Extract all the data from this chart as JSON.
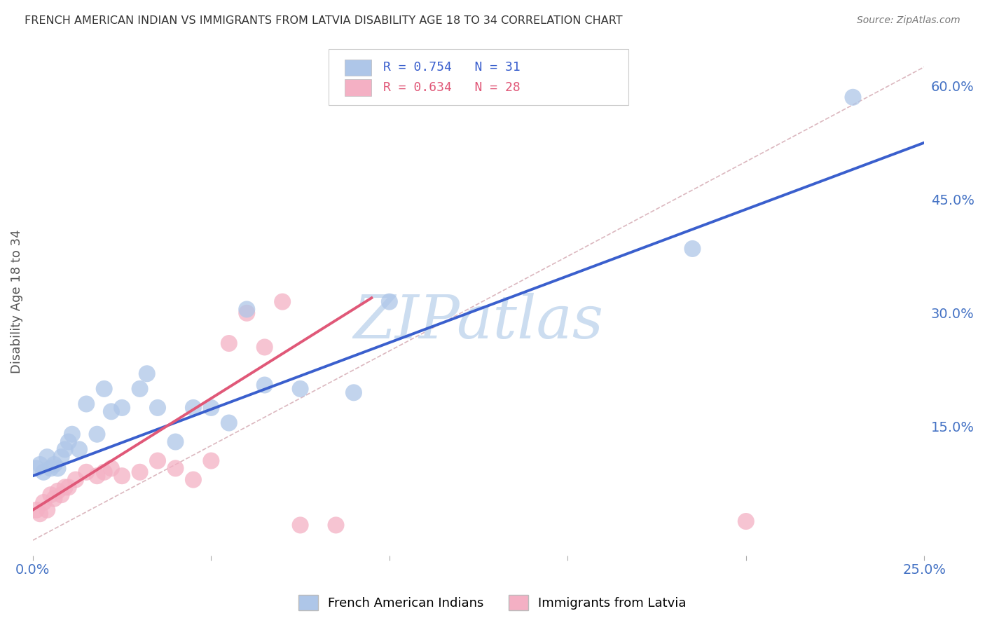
{
  "title": "FRENCH AMERICAN INDIAN VS IMMIGRANTS FROM LATVIA DISABILITY AGE 18 TO 34 CORRELATION CHART",
  "source": "Source: ZipAtlas.com",
  "ylabel": "Disability Age 18 to 34",
  "legend_blue_r": "R = 0.754",
  "legend_blue_n": "N = 31",
  "legend_pink_r": "R = 0.634",
  "legend_pink_n": "N = 28",
  "legend_label_blue": "French American Indians",
  "legend_label_pink": "Immigrants from Latvia",
  "watermark": "ZIPatlas",
  "blue_scatter_x": [
    0.001,
    0.002,
    0.003,
    0.004,
    0.005,
    0.006,
    0.007,
    0.008,
    0.009,
    0.01,
    0.011,
    0.013,
    0.015,
    0.018,
    0.02,
    0.022,
    0.025,
    0.03,
    0.032,
    0.035,
    0.04,
    0.045,
    0.05,
    0.055,
    0.06,
    0.065,
    0.075,
    0.09,
    0.1,
    0.185,
    0.23
  ],
  "blue_scatter_y": [
    0.095,
    0.1,
    0.09,
    0.11,
    0.095,
    0.1,
    0.095,
    0.11,
    0.12,
    0.13,
    0.14,
    0.12,
    0.18,
    0.14,
    0.2,
    0.17,
    0.175,
    0.2,
    0.22,
    0.175,
    0.13,
    0.175,
    0.175,
    0.155,
    0.305,
    0.205,
    0.2,
    0.195,
    0.315,
    0.385,
    0.585
  ],
  "pink_scatter_x": [
    0.001,
    0.002,
    0.003,
    0.004,
    0.005,
    0.006,
    0.007,
    0.008,
    0.009,
    0.01,
    0.012,
    0.015,
    0.018,
    0.02,
    0.022,
    0.025,
    0.03,
    0.035,
    0.04,
    0.045,
    0.05,
    0.055,
    0.06,
    0.065,
    0.07,
    0.075,
    0.085,
    0.2
  ],
  "pink_scatter_y": [
    0.04,
    0.035,
    0.05,
    0.04,
    0.06,
    0.055,
    0.065,
    0.06,
    0.07,
    0.07,
    0.08,
    0.09,
    0.085,
    0.09,
    0.095,
    0.085,
    0.09,
    0.105,
    0.095,
    0.08,
    0.105,
    0.26,
    0.3,
    0.255,
    0.315,
    0.02,
    0.02,
    0.025
  ],
  "blue_line_x": [
    0.0,
    0.25
  ],
  "blue_line_y": [
    0.085,
    0.525
  ],
  "pink_line_x": [
    0.0,
    0.095
  ],
  "pink_line_y": [
    0.04,
    0.32
  ],
  "diag_line_x": [
    0.0,
    0.25
  ],
  "diag_line_y": [
    0.0,
    0.625
  ],
  "xlim": [
    0.0,
    0.25
  ],
  "ylim": [
    -0.02,
    0.65
  ],
  "x_ticks": [
    0.0,
    0.05,
    0.1,
    0.15,
    0.2,
    0.25
  ],
  "y_ticks_right": [
    0.15,
    0.3,
    0.45,
    0.6
  ],
  "blue_color": "#aec6e8",
  "blue_line_color": "#3a5fcd",
  "pink_color": "#f4b0c4",
  "pink_line_color": "#e05878",
  "diag_line_color": "#d8b0b8",
  "grid_color": "#e0e0e0",
  "title_color": "#333333",
  "axis_label_color": "#4472c4",
  "right_axis_label_color": "#4472c4",
  "watermark_color": "#ccddf0",
  "background_color": "#ffffff"
}
